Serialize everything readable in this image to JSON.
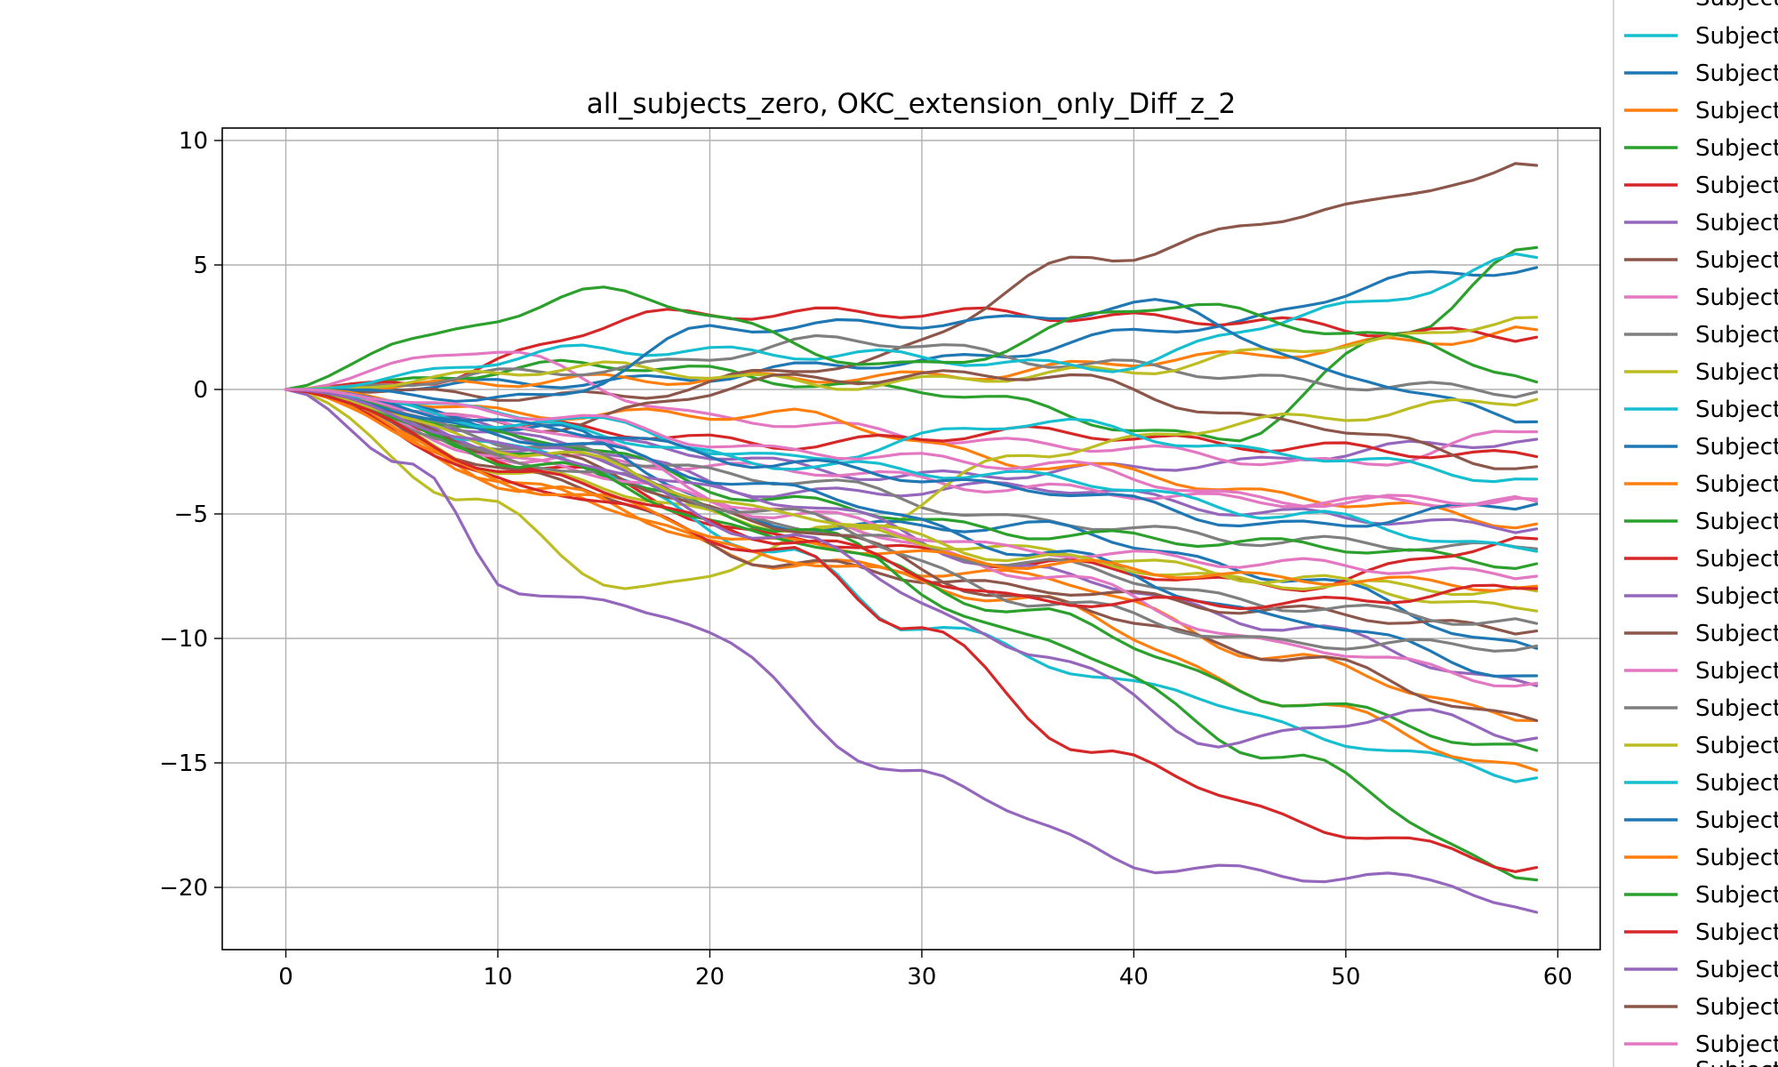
{
  "chart_data": {
    "type": "line",
    "title": "all_subjects_zero, OKC_extension_only_Diff_z_2",
    "xlabel": "",
    "ylabel": "",
    "xlim": [
      -3,
      62
    ],
    "ylim": [
      -22.5,
      10.5
    ],
    "x_ticks": [
      0,
      10,
      20,
      30,
      40,
      50,
      60
    ],
    "x_tick_labels": [
      "0",
      "10",
      "20",
      "30",
      "40",
      "50",
      "60"
    ],
    "y_ticks": [
      10,
      5,
      0,
      -5,
      -10,
      -15,
      -20
    ],
    "y_tick_labels": [
      "10",
      "5",
      "0",
      "−5",
      "−10",
      "−15",
      "−20"
    ],
    "grid": true,
    "legend_placement": "outside-right",
    "legend_label": "Subject",
    "legend_colors": [
      "#17becf",
      "#1f77b4",
      "#ff7f0e",
      "#2ca02c",
      "#d62728",
      "#9467bd",
      "#8c564b",
      "#e377c2",
      "#7f7f7f",
      "#bcbd22",
      "#17becf",
      "#1f77b4",
      "#ff7f0e",
      "#2ca02c",
      "#d62728",
      "#9467bd",
      "#8c564b",
      "#e377c2",
      "#7f7f7f",
      "#bcbd22",
      "#17becf",
      "#1f77b4",
      "#ff7f0e",
      "#2ca02c",
      "#d62728",
      "#9467bd",
      "#8c564b",
      "#e377c2"
    ],
    "x_range": [
      0,
      59
    ],
    "series": [
      {
        "color": "#1f77b4",
        "end": 4.9,
        "shape": [
          [
            0.25,
            0.3
          ],
          [
            0.5,
            1.1
          ],
          [
            0.75,
            2.6
          ],
          [
            0.9,
            4.5
          ]
        ]
      },
      {
        "color": "#ff7f0e",
        "end": 2.4,
        "shape": [
          [
            0.25,
            0.4
          ],
          [
            0.5,
            0.5
          ],
          [
            0.75,
            1.3
          ],
          [
            0.9,
            1.9
          ]
        ]
      },
      {
        "color": "#2ca02c",
        "end": 5.7,
        "shape": [
          [
            0.25,
            1.0
          ],
          [
            0.5,
            0.0
          ],
          [
            0.75,
            -2.0
          ],
          [
            0.9,
            2.5
          ]
        ]
      },
      {
        "color": "#d62728",
        "end": 2.1,
        "shape": [
          [
            0.1,
            0.3
          ],
          [
            0.3,
            3.0
          ],
          [
            0.5,
            3.1
          ],
          [
            0.75,
            2.8
          ],
          [
            0.9,
            2.3
          ]
        ]
      },
      {
        "color": "#9467bd",
        "end": -2.0,
        "shape": [
          [
            0.25,
            -2.2
          ],
          [
            0.5,
            -3.5
          ],
          [
            0.75,
            -3.0
          ],
          [
            0.9,
            -2.3
          ]
        ]
      },
      {
        "color": "#8c564b",
        "end": 9.0,
        "shape": [
          [
            0.25,
            -0.3
          ],
          [
            0.45,
            1.0
          ],
          [
            0.65,
            5.3
          ],
          [
            0.85,
            7.3
          ],
          [
            0.95,
            8.5
          ]
        ]
      },
      {
        "color": "#e377c2",
        "end": -1.7,
        "shape": [
          [
            0.15,
            1.6
          ],
          [
            0.35,
            -1.2
          ],
          [
            0.6,
            -2.2
          ],
          [
            0.85,
            -3.0
          ]
        ]
      },
      {
        "color": "#7f7f7f",
        "end": -0.1,
        "shape": [
          [
            0.25,
            0.8
          ],
          [
            0.45,
            2.0
          ],
          [
            0.65,
            1.0
          ],
          [
            0.85,
            0.2
          ]
        ]
      },
      {
        "color": "#bcbd22",
        "end": 2.9,
        "shape": [
          [
            0.25,
            0.9
          ],
          [
            0.45,
            0.2
          ],
          [
            0.65,
            0.7
          ],
          [
            0.85,
            1.8
          ]
        ]
      },
      {
        "color": "#17becf",
        "end": 5.3,
        "shape": [
          [
            0.25,
            1.6
          ],
          [
            0.45,
            1.4
          ],
          [
            0.65,
            0.9
          ],
          [
            0.85,
            3.3
          ]
        ]
      },
      {
        "color": "#1f77b4",
        "end": -1.3,
        "shape": [
          [
            0.2,
            -0.4
          ],
          [
            0.35,
            2.5
          ],
          [
            0.55,
            2.7
          ],
          [
            0.7,
            3.4
          ],
          [
            0.85,
            0.5
          ]
        ]
      },
      {
        "color": "#ff7f0e",
        "end": -5.4,
        "shape": [
          [
            0.2,
            -1.0
          ],
          [
            0.4,
            -1.0
          ],
          [
            0.6,
            -3.0
          ],
          [
            0.85,
            -4.5
          ]
        ]
      },
      {
        "color": "#2ca02c",
        "end": 0.3,
        "shape": [
          [
            0.1,
            2.0
          ],
          [
            0.25,
            3.9
          ],
          [
            0.5,
            0.9
          ],
          [
            0.7,
            3.4
          ],
          [
            0.9,
            2.0
          ]
        ]
      },
      {
        "color": "#d62728",
        "end": -2.7,
        "shape": [
          [
            0.2,
            -1.5
          ],
          [
            0.4,
            -2.2
          ],
          [
            0.6,
            -1.7
          ],
          [
            0.8,
            -2.3
          ]
        ]
      },
      {
        "color": "#9467bd",
        "end": -5.6,
        "shape": [
          [
            0.2,
            -2.0
          ],
          [
            0.4,
            -4.2
          ],
          [
            0.6,
            -3.9
          ],
          [
            0.8,
            -5.0
          ]
        ]
      },
      {
        "color": "#8c564b",
        "end": -3.1,
        "shape": [
          [
            0.2,
            -1.5
          ],
          [
            0.4,
            0.4
          ],
          [
            0.6,
            0.6
          ],
          [
            0.8,
            -1.3
          ]
        ]
      },
      {
        "color": "#e377c2",
        "end": -4.5,
        "shape": [
          [
            0.2,
            -2.8
          ],
          [
            0.4,
            -3.2
          ],
          [
            0.6,
            -4.0
          ],
          [
            0.8,
            -4.5
          ]
        ]
      },
      {
        "color": "#7f7f7f",
        "end": -6.4,
        "shape": [
          [
            0.2,
            -2.5
          ],
          [
            0.4,
            -3.6
          ],
          [
            0.6,
            -5.3
          ],
          [
            0.8,
            -6.1
          ]
        ]
      },
      {
        "color": "#bcbd22",
        "end": -0.4,
        "shape": [
          [
            0.15,
            -4.5
          ],
          [
            0.28,
            -8.1
          ],
          [
            0.45,
            -5.6
          ],
          [
            0.6,
            -2.5
          ],
          [
            0.8,
            -1.2
          ]
        ]
      },
      {
        "color": "#17becf",
        "end": -3.6,
        "shape": [
          [
            0.2,
            -1.0
          ],
          [
            0.4,
            -2.8
          ],
          [
            0.6,
            -1.3
          ],
          [
            0.8,
            -2.6
          ]
        ]
      },
      {
        "color": "#1f77b4",
        "end": -10.4,
        "shape": [
          [
            0.2,
            -1.5
          ],
          [
            0.4,
            -5.5
          ],
          [
            0.6,
            -5.5
          ],
          [
            0.8,
            -7.5
          ]
        ]
      },
      {
        "color": "#ff7f0e",
        "end": -13.3,
        "shape": [
          [
            0.2,
            -4.0
          ],
          [
            0.4,
            -7.0
          ],
          [
            0.6,
            -7.5
          ],
          [
            0.8,
            -10.8
          ]
        ]
      },
      {
        "color": "#2ca02c",
        "end": -7.0,
        "shape": [
          [
            0.2,
            -2.0
          ],
          [
            0.4,
            -4.5
          ],
          [
            0.6,
            -5.8
          ],
          [
            0.8,
            -6.2
          ]
        ]
      },
      {
        "color": "#d62728",
        "end": -6.0,
        "shape": [
          [
            0.2,
            -3.0
          ],
          [
            0.4,
            -6.0
          ],
          [
            0.6,
            -7.0
          ],
          [
            0.8,
            -7.9
          ]
        ]
      },
      {
        "color": "#9467bd",
        "end": -11.9,
        "shape": [
          [
            0.2,
            -2.5
          ],
          [
            0.4,
            -4.5
          ],
          [
            0.6,
            -7.3
          ],
          [
            0.8,
            -9.5
          ]
        ]
      },
      {
        "color": "#8c564b",
        "end": -9.7,
        "shape": [
          [
            0.2,
            -3.5
          ],
          [
            0.4,
            -7.0
          ],
          [
            0.6,
            -8.0
          ],
          [
            0.8,
            -8.9
          ]
        ]
      },
      {
        "color": "#e377c2",
        "end": -11.8,
        "shape": [
          [
            0.2,
            -1.5
          ],
          [
            0.4,
            -5.0
          ],
          [
            0.6,
            -7.4
          ],
          [
            0.8,
            -10.3
          ]
        ]
      },
      {
        "color": "#7f7f7f",
        "end": -9.4,
        "shape": [
          [
            0.2,
            -2.2
          ],
          [
            0.4,
            -5.5
          ],
          [
            0.6,
            -7.0
          ],
          [
            0.8,
            -8.7
          ]
        ]
      },
      {
        "color": "#bcbd22",
        "end": -8.9,
        "shape": [
          [
            0.2,
            -3.5
          ],
          [
            0.4,
            -5.5
          ],
          [
            0.6,
            -6.5
          ],
          [
            0.8,
            -7.6
          ]
        ]
      },
      {
        "color": "#17becf",
        "end": -15.6,
        "shape": [
          [
            0.2,
            -2.5
          ],
          [
            0.4,
            -6.5
          ],
          [
            0.5,
            -9.5
          ],
          [
            0.7,
            -12.0
          ],
          [
            0.85,
            -14.2
          ]
        ]
      },
      {
        "color": "#1f77b4",
        "end": -11.5,
        "shape": [
          [
            0.2,
            -2.0
          ],
          [
            0.4,
            -4.0
          ],
          [
            0.6,
            -6.5
          ],
          [
            0.8,
            -9.2
          ]
        ]
      },
      {
        "color": "#ff7f0e",
        "end": -15.3,
        "shape": [
          [
            0.2,
            -4.0
          ],
          [
            0.4,
            -6.8
          ],
          [
            0.6,
            -8.5
          ],
          [
            0.8,
            -12.5
          ]
        ]
      },
      {
        "color": "#2ca02c",
        "end": -19.7,
        "shape": [
          [
            0.2,
            -2.8
          ],
          [
            0.4,
            -5.5
          ],
          [
            0.6,
            -10.0
          ],
          [
            0.8,
            -14.8
          ]
        ]
      },
      {
        "color": "#d62728",
        "end": -19.2,
        "shape": [
          [
            0.2,
            -4.0
          ],
          [
            0.4,
            -6.5
          ],
          [
            0.5,
            -9.5
          ],
          [
            0.65,
            -14.7
          ],
          [
            0.85,
            -17.8
          ]
        ]
      },
      {
        "color": "#9467bd",
        "end": -21.0,
        "shape": [
          [
            0.1,
            -3.0
          ],
          [
            0.18,
            -8.0
          ],
          [
            0.3,
            -9.0
          ],
          [
            0.5,
            -15.5
          ],
          [
            0.7,
            -19.2
          ],
          [
            0.85,
            -19.6
          ],
          [
            0.92,
            -19.7
          ]
        ]
      },
      {
        "color": "#8c564b",
        "end": -13.3,
        "shape": [
          [
            0.2,
            -2.7
          ],
          [
            0.4,
            -5.5
          ],
          [
            0.6,
            -8.5
          ],
          [
            0.8,
            -10.7
          ]
        ]
      },
      {
        "color": "#e377c2",
        "end": -7.5,
        "shape": [
          [
            0.2,
            -3.0
          ],
          [
            0.4,
            -5.0
          ],
          [
            0.6,
            -6.5
          ],
          [
            0.8,
            -7.0
          ]
        ]
      },
      {
        "color": "#7f7f7f",
        "end": -10.3,
        "shape": [
          [
            0.2,
            -3.0
          ],
          [
            0.4,
            -5.0
          ],
          [
            0.6,
            -8.5
          ],
          [
            0.8,
            -10.2
          ]
        ]
      },
      {
        "color": "#bcbd22",
        "end": -8.1,
        "shape": [
          [
            0.2,
            -2.5
          ],
          [
            0.4,
            -5.0
          ],
          [
            0.6,
            -6.8
          ],
          [
            0.8,
            -7.8
          ]
        ]
      },
      {
        "color": "#17becf",
        "end": -6.5,
        "shape": [
          [
            0.2,
            -1.5
          ],
          [
            0.4,
            -3.0
          ],
          [
            0.6,
            -3.5
          ],
          [
            0.8,
            -5.0
          ]
        ]
      },
      {
        "color": "#1f77b4",
        "end": -4.6,
        "shape": [
          [
            0.2,
            -1.5
          ],
          [
            0.4,
            -3.0
          ],
          [
            0.6,
            -4.0
          ],
          [
            0.8,
            -5.5
          ]
        ]
      },
      {
        "color": "#ff7f0e",
        "end": -7.9,
        "shape": [
          [
            0.2,
            -4.0
          ],
          [
            0.4,
            -6.2
          ],
          [
            0.6,
            -7.0
          ],
          [
            0.8,
            -7.6
          ]
        ]
      },
      {
        "color": "#2ca02c",
        "end": -14.5,
        "shape": [
          [
            0.2,
            -3.0
          ],
          [
            0.4,
            -6.0
          ],
          [
            0.6,
            -9.0
          ],
          [
            0.8,
            -12.5
          ]
        ]
      },
      {
        "color": "#d62728",
        "end": -8.0,
        "shape": [
          [
            0.2,
            -3.5
          ],
          [
            0.4,
            -6.0
          ],
          [
            0.6,
            -8.5
          ],
          [
            0.8,
            -8.6
          ]
        ]
      },
      {
        "color": "#9467bd",
        "end": -14.0,
        "shape": [
          [
            0.2,
            -2.5
          ],
          [
            0.4,
            -6.0
          ],
          [
            0.6,
            -10.5
          ],
          [
            0.75,
            -14.2
          ],
          [
            0.9,
            -13.0
          ]
        ]
      },
      {
        "color": "#e377c2",
        "end": -4.4,
        "shape": [
          [
            0.2,
            -1.0
          ],
          [
            0.4,
            -2.5
          ],
          [
            0.6,
            -3.0
          ],
          [
            0.8,
            -4.5
          ]
        ]
      }
    ]
  }
}
